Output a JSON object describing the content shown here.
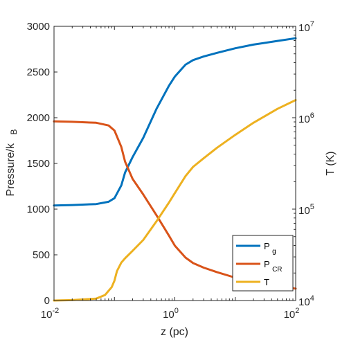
{
  "chart_data": {
    "type": "line",
    "xlabel": "z (pc)",
    "ylabel_left": "Pressure/k",
    "ylabel_left_sub": "B",
    "ylabel_right": "T (K)",
    "x_scale": "log",
    "xlim": [
      0.01,
      100
    ],
    "ylim_left": [
      0,
      3000
    ],
    "ylim_right": [
      10000,
      10000000
    ],
    "y_right_scale": "log",
    "grid": false,
    "legend_placement": "bottom-right",
    "x_ticks": [
      {
        "value": 0.01,
        "base": "10",
        "exp": "-2"
      },
      {
        "value": 1,
        "base": "10",
        "exp": "0"
      },
      {
        "value": 100,
        "base": "10",
        "exp": "2"
      }
    ],
    "y_left_ticks": [
      "0",
      "500",
      "1000",
      "1500",
      "2000",
      "2500",
      "3000"
    ],
    "y_right_ticks": [
      {
        "value": 10000,
        "base": "10",
        "exp": "4"
      },
      {
        "value": 100000,
        "base": "10",
        "exp": "5"
      },
      {
        "value": 1000000,
        "base": "10",
        "exp": "6"
      },
      {
        "value": 10000000,
        "base": "10",
        "exp": "7"
      }
    ],
    "series": [
      {
        "name": "P",
        "name_sub": "g",
        "axis": "left",
        "color": "#0072BD",
        "x": [
          0.01,
          0.02,
          0.05,
          0.08,
          0.1,
          0.13,
          0.15,
          0.2,
          0.3,
          0.5,
          0.8,
          1.0,
          1.5,
          2,
          3,
          5,
          10,
          20,
          50,
          100
        ],
        "y": [
          1040,
          1045,
          1055,
          1080,
          1120,
          1260,
          1400,
          1570,
          1780,
          2100,
          2350,
          2450,
          2580,
          2630,
          2670,
          2710,
          2760,
          2800,
          2840,
          2870
        ]
      },
      {
        "name": "P",
        "name_sub": "CR",
        "axis": "left",
        "color": "#D95319",
        "x": [
          0.01,
          0.02,
          0.05,
          0.08,
          0.1,
          0.13,
          0.15,
          0.2,
          0.3,
          0.5,
          0.8,
          1.0,
          1.5,
          2,
          3,
          5,
          10,
          20,
          50,
          100
        ],
        "y": [
          1960,
          1955,
          1945,
          1915,
          1860,
          1680,
          1520,
          1330,
          1160,
          930,
          710,
          600,
          470,
          410,
          360,
          310,
          250,
          200,
          160,
          130
        ]
      },
      {
        "name": "T",
        "axis": "right",
        "color": "#EDB120",
        "x": [
          0.01,
          0.02,
          0.05,
          0.07,
          0.09,
          0.1,
          0.11,
          0.13,
          0.15,
          0.2,
          0.3,
          0.5,
          0.8,
          1.0,
          1.5,
          2,
          3,
          5,
          10,
          20,
          50,
          100
        ],
        "y": [
          10000,
          10100,
          10500,
          11500,
          14000,
          16500,
          21000,
          26000,
          29000,
          35000,
          46000,
          74000,
          118000,
          150000,
          230000,
          290000,
          360000,
          470000,
          650000,
          880000,
          1250000,
          1560000
        ]
      }
    ]
  }
}
